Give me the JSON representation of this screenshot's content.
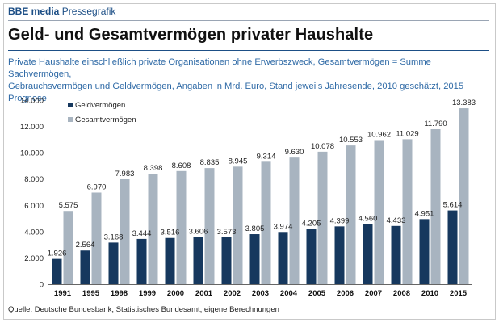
{
  "header": {
    "brand_bold": "BBE media",
    "brand_rest": "Pressegrafik"
  },
  "title": "Geld- und Gesamtvermögen privater Haushalte",
  "subtitle_line1": "Private Haushalte einschließlich private Organisationen ohne Erwerbszweck, Gesamtvermögen = Summe Sachvermögen,",
  "subtitle_line2": "Gebrauchsvermögen und Geldvermögen, Angaben in Mrd. Euro, Stand jeweils Jahresende, 2010 geschätzt, 2015 Prognose",
  "source": "Quelle: Deutsche Bundesbank, Statistisches Bundesamt, eigene Berechnungen",
  "colors": {
    "geld": "#16385e",
    "gesamt": "#a8b4c0"
  },
  "chart_data": {
    "type": "bar",
    "title": "Geld- und Gesamtvermögen privater Haushalte",
    "xlabel": "",
    "ylabel": "Mrd. Euro",
    "ylim": [
      0,
      14000
    ],
    "yticks": [
      0,
      2000,
      4000,
      6000,
      8000,
      10000,
      12000,
      14000
    ],
    "ytick_labels": [
      "0",
      "2.000",
      "4.000",
      "6.000",
      "8.000",
      "10.000",
      "12.000",
      "14.000"
    ],
    "legend_position": "top-left",
    "categories": [
      "1991",
      "1995",
      "1998",
      "1999",
      "2000",
      "2001",
      "2002",
      "2003",
      "2004",
      "2005",
      "2006",
      "2007",
      "2008",
      "2010",
      "2015"
    ],
    "series": [
      {
        "name": "Geldvermögen",
        "values": [
          1926,
          2564,
          3168,
          3444,
          3516,
          3606,
          3573,
          3805,
          3974,
          4205,
          4399,
          4560,
          4433,
          4951,
          5614
        ],
        "labels": [
          "1.926",
          "2.564",
          "3.168",
          "3.444",
          "3.516",
          "3.606",
          "3.573",
          "3.805",
          "3.974",
          "4.205",
          "4.399",
          "4.560",
          "4.433",
          "4.951",
          "5.614"
        ]
      },
      {
        "name": "Gesamtvermögen",
        "values": [
          5575,
          6970,
          7983,
          8398,
          8608,
          8835,
          8945,
          9314,
          9630,
          10078,
          10553,
          10962,
          11029,
          11790,
          13383
        ],
        "labels": [
          "5.575",
          "6.970",
          "7.983",
          "8.398",
          "8.608",
          "8.835",
          "8.945",
          "9.314",
          "9.630",
          "10.078",
          "10.553",
          "10.962",
          "11.029",
          "11.790",
          "13.383"
        ]
      }
    ]
  }
}
